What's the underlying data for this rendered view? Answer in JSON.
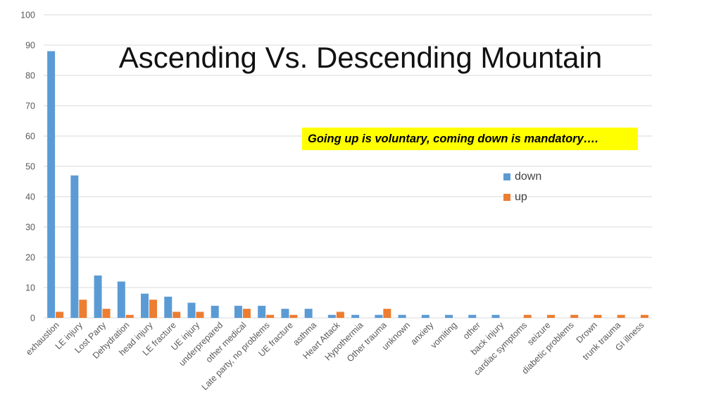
{
  "slide": {
    "title": "Ascending Vs. Descending Mountain",
    "callout": "Going up is voluntary, coming down is mandatory…."
  },
  "colors": {
    "down": "#5b9bd5",
    "up": "#ed7d31",
    "grid": "#d9d9d9",
    "tick_text": "#595959",
    "callout_bg": "#ffff00"
  },
  "chart_data": {
    "type": "bar",
    "title": "",
    "xlabel": "",
    "ylabel": "",
    "ylim": [
      0,
      100
    ],
    "y_ticks": [
      0,
      10,
      20,
      30,
      40,
      50,
      60,
      70,
      80,
      90,
      100
    ],
    "grid": true,
    "legend_position": "right",
    "categories": [
      "exhaustion",
      "LE injury",
      "Lost Party",
      "Dehydration",
      "head injury",
      "LE fracture",
      "UE injury",
      "underprepared",
      "other medical",
      "Late party, no problems",
      "UE fracture",
      "asthma",
      "Heart Attack",
      "Hypothermia",
      "Other trauma",
      "unknown",
      "anxiety",
      "vomiting",
      "other",
      "back injury",
      "cardiac symptoms",
      "seizure",
      "diabetic problems",
      "Drown",
      "trunk trauma",
      "GI illness"
    ],
    "series": [
      {
        "name": "down",
        "color": "#5b9bd5",
        "values": [
          88,
          47,
          14,
          12,
          8,
          7,
          5,
          4,
          4,
          4,
          3,
          3,
          1,
          1,
          1,
          1,
          1,
          1,
          1,
          1,
          0,
          0,
          0,
          0,
          0,
          0
        ]
      },
      {
        "name": "up",
        "color": "#ed7d31",
        "values": [
          2,
          6,
          3,
          1,
          6,
          2,
          2,
          0,
          3,
          1,
          1,
          0,
          2,
          0,
          3,
          0,
          0,
          0,
          0,
          0,
          1,
          1,
          1,
          1,
          1,
          1
        ]
      }
    ]
  }
}
